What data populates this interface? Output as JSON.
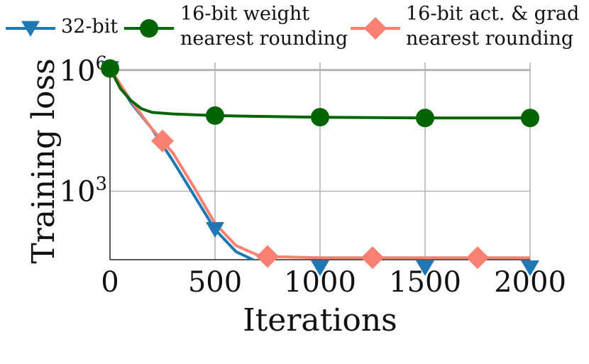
{
  "chart_data": {
    "type": "line",
    "xlabel": "Iterations",
    "ylabel": "Training loss",
    "xlim": [
      0,
      2000
    ],
    "ylim_log10": [
      1.3,
      6.2
    ],
    "y_scale": "log",
    "grid": true,
    "legend_position": "top",
    "x_ticks": [
      0,
      500,
      1000,
      1500,
      2000
    ],
    "x_tick_labels": [
      "0",
      "500",
      "1000",
      "1500",
      "2000"
    ],
    "y_ticks_log10": [
      3,
      6
    ],
    "y_tick_labels": [
      {
        "base": "10",
        "exp": "3"
      },
      {
        "base": "10",
        "exp": "6"
      }
    ],
    "series": [
      {
        "name": "32-bit",
        "color": "#1f77b4",
        "marker": "triangle-down",
        "x": [
          0,
          100,
          200,
          300,
          400,
          500,
          600,
          700,
          800,
          1000,
          1200,
          1500,
          1800,
          2000
        ],
        "y_log10": [
          6.05,
          5.2,
          4.55,
          3.75,
          2.9,
          2.05,
          1.5,
          1.25,
          1.12,
          1.1,
          1.1,
          1.1,
          1.1,
          1.1
        ],
        "markers_x": [
          0,
          500,
          1000,
          1500,
          2000
        ]
      },
      {
        "name": "16-bit weight\nnearest rounding",
        "color": "#006400",
        "marker": "circle",
        "x": [
          0,
          50,
          100,
          150,
          200,
          300,
          400,
          500,
          700,
          1000,
          1500,
          2000
        ],
        "y_log10": [
          6.05,
          5.55,
          5.25,
          5.05,
          4.96,
          4.92,
          4.9,
          4.88,
          4.86,
          4.84,
          4.82,
          4.82
        ],
        "markers_x": [
          0,
          500,
          1000,
          1500,
          2000
        ]
      },
      {
        "name": "16-bit act. & grad\nnearest rounding",
        "color": "#fa8072",
        "marker": "diamond",
        "x": [
          0,
          100,
          200,
          250,
          300,
          400,
          500,
          600,
          700,
          750,
          1000,
          1250,
          1500,
          1750,
          2000
        ],
        "y_log10": [
          6.05,
          5.25,
          4.55,
          4.25,
          3.95,
          3.1,
          2.2,
          1.65,
          1.42,
          1.38,
          1.35,
          1.35,
          1.35,
          1.35,
          1.35
        ],
        "markers_x": [
          250,
          750,
          1250,
          1750
        ]
      }
    ]
  }
}
